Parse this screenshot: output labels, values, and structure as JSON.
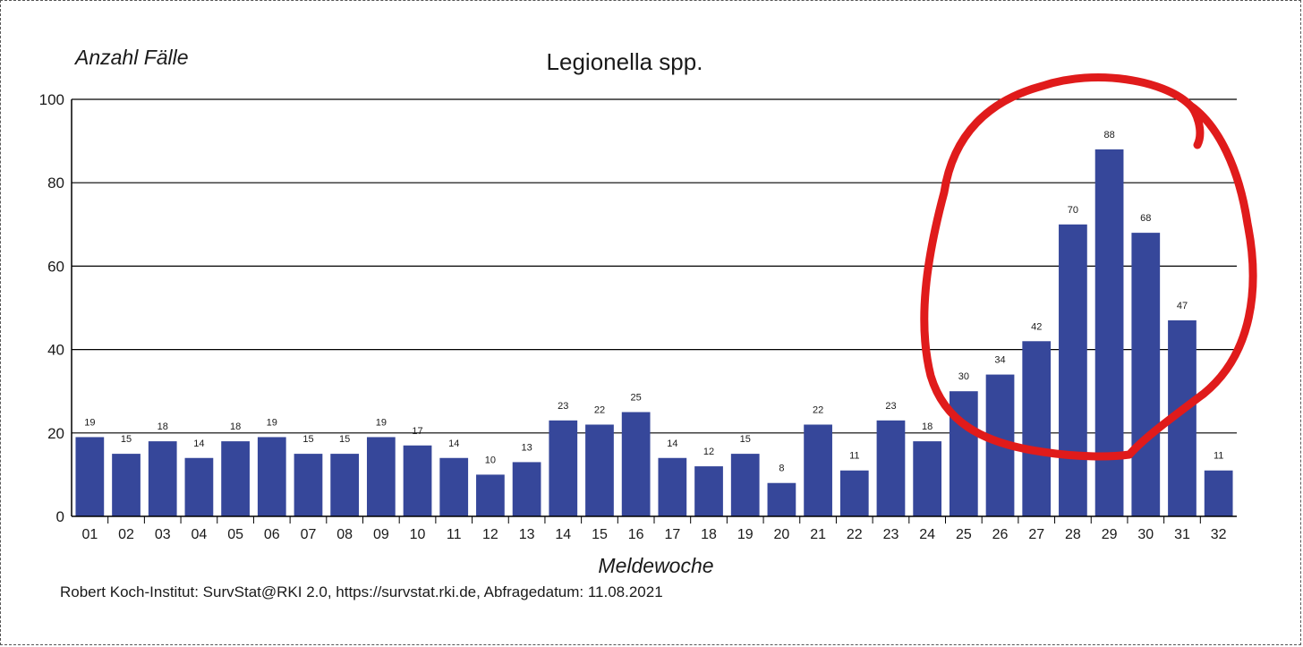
{
  "chart_data": {
    "type": "bar",
    "title": "Legionella spp.",
    "ylabel": "Anzahl Fälle",
    "xlabel": "Meldewoche",
    "ylim": [
      0,
      100
    ],
    "yticks": [
      0,
      20,
      40,
      60,
      80,
      100
    ],
    "grid": true,
    "categories": [
      "01",
      "02",
      "03",
      "04",
      "05",
      "06",
      "07",
      "08",
      "09",
      "10",
      "11",
      "12",
      "13",
      "14",
      "15",
      "16",
      "17",
      "18",
      "19",
      "20",
      "21",
      "22",
      "23",
      "24",
      "25",
      "26",
      "27",
      "28",
      "29",
      "30",
      "31",
      "32"
    ],
    "values": [
      19,
      15,
      18,
      14,
      18,
      19,
      15,
      15,
      19,
      17,
      14,
      10,
      13,
      23,
      22,
      25,
      14,
      12,
      15,
      8,
      22,
      11,
      23,
      18,
      30,
      34,
      42,
      70,
      88,
      68,
      47,
      11
    ],
    "source": "Robert Koch-Institut: SurvStat@RKI 2.0, https://survstat.rki.de, Abfragedatum: 11.08.2021",
    "annotation": {
      "shape": "hand-drawn circle",
      "color": "#e01b1b",
      "highlighted_categories": [
        "25",
        "26",
        "27",
        "28",
        "29",
        "30",
        "31"
      ]
    }
  },
  "colors": {
    "bar": "#36479a",
    "title": "#2b3f7e",
    "grid": "#000000",
    "annotation": "#e01b1b"
  }
}
